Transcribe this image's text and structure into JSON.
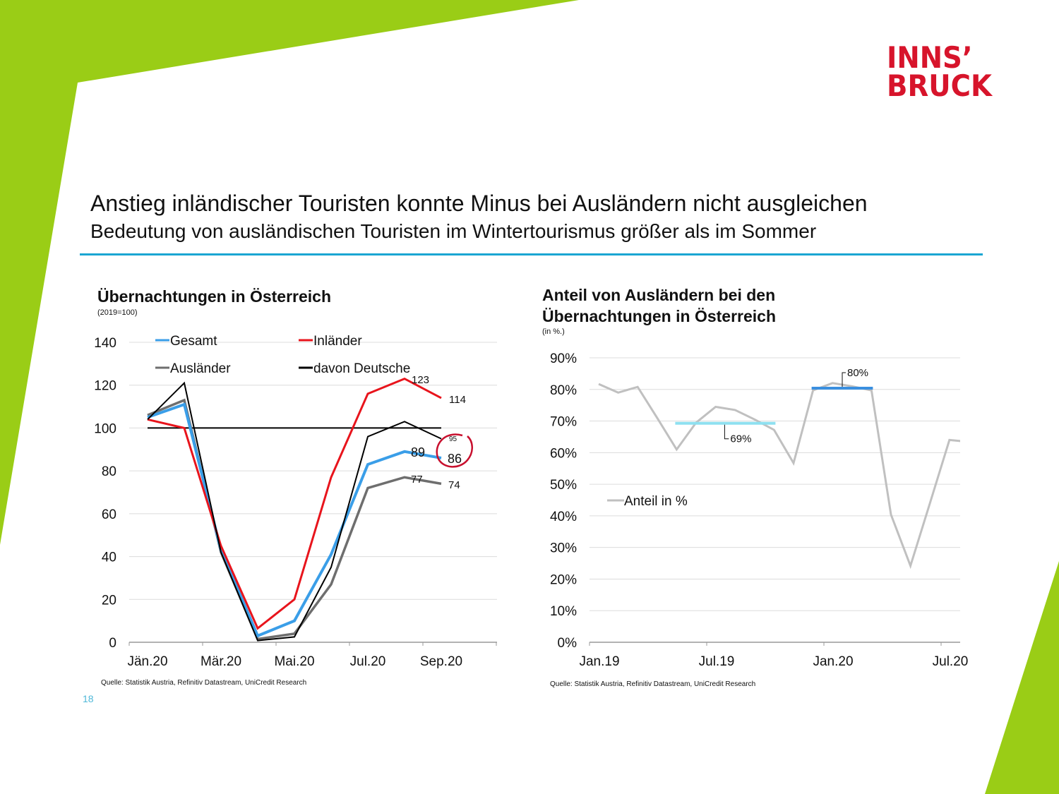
{
  "slide": {
    "logo_line1": "INNS’",
    "logo_line2": "BRUCK",
    "headline": "Anstieg inländischer Touristen konnte Minus bei Ausländern nicht ausgleichen",
    "subline": "Bedeutung von ausländischen Touristen im Wintertourismus größer als im Sommer",
    "page_number": "18",
    "colors": {
      "brand_green": "#9acd16",
      "brand_red": "#d7142b",
      "divider_blue": "#1aa6d2"
    }
  },
  "left_chart": {
    "title": "Übernachtungen in Österreich",
    "unit": "(2019=100)",
    "source": "Quelle: Statistik Austria, Refinitiv Datastream, UniCredit Research"
  },
  "right_chart": {
    "title_line1": "Anteil von Ausländern bei den",
    "title_line2": "Übernachtungen in Österreich",
    "unit": "(in %.)",
    "source": "Quelle: Statistik Austria, Refinitiv Datastream, UniCredit Research"
  },
  "chart_data": [
    {
      "type": "line",
      "title": "Übernachtungen in Österreich",
      "subtitle": "(2019=100)",
      "xlabel": "",
      "ylabel": "",
      "x": [
        "Jän.20",
        "Feb.20",
        "Mär.20",
        "Apr.20",
        "Mai.20",
        "Jun.20",
        "Jul.20",
        "Aug.20",
        "Sep.20"
      ],
      "x_tick_labels": [
        "Jän.20",
        "Mär.20",
        "Mai.20",
        "Jul.20",
        "Sep.20"
      ],
      "ylim": [
        0,
        140
      ],
      "y_ticks": [
        0,
        20,
        40,
        60,
        80,
        100,
        120,
        140
      ],
      "grid": true,
      "legend": "top",
      "reference_line": {
        "value": 100,
        "color": "#000000"
      },
      "series": [
        {
          "name": "Gesamt",
          "color": "#3a9ee8",
          "values": [
            105,
            111,
            43,
            3,
            10,
            41,
            83,
            89,
            86
          ]
        },
        {
          "name": "Inländer",
          "color": "#e8141c",
          "values": [
            104,
            100,
            45,
            6.5,
            20,
            77,
            116,
            123,
            114
          ]
        },
        {
          "name": "Ausländer",
          "color": "#6e6e6e",
          "values": [
            106,
            113,
            42,
            1.5,
            4,
            27,
            72,
            77,
            74
          ]
        },
        {
          "name": "davon Deutsche",
          "color": "#000000",
          "values": [
            104,
            121,
            42,
            0.8,
            2.5,
            35,
            96,
            103,
            95
          ]
        }
      ],
      "annotations": [
        {
          "text": "123",
          "series": "Inländer",
          "x": "Aug.20"
        },
        {
          "text": "114",
          "series": "Inländer",
          "x": "Sep.20"
        },
        {
          "text": "95",
          "series": "davon Deutsche",
          "x": "Sep.20"
        },
        {
          "text": "89",
          "series": "Gesamt",
          "x": "Aug.20"
        },
        {
          "text": "86",
          "series": "Gesamt",
          "x": "Sep.20",
          "circled": true
        },
        {
          "text": "77",
          "series": "Ausländer",
          "x": "Aug.20"
        },
        {
          "text": "74",
          "series": "Ausländer",
          "x": "Sep.20"
        }
      ]
    },
    {
      "type": "line",
      "title": "Anteil von Ausländern bei den Übernachtungen in Österreich",
      "subtitle": "(in %.)",
      "xlabel": "",
      "ylabel": "",
      "x": [
        "Jan.19",
        "Feb.19",
        "Mär.19",
        "Apr.19",
        "Mai.19",
        "Jun.19",
        "Jul.19",
        "Aug.19",
        "Sep.19",
        "Okt.19",
        "Nov.19",
        "Dez.19",
        "Jan.20",
        "Feb.20",
        "Mär.20",
        "Apr.20",
        "Mai.20",
        "Jun.20",
        "Jul.20",
        "Aug.20"
      ],
      "x_tick_labels": [
        "Jan.19",
        "Jul.19",
        "Jan.20",
        "Jul.20"
      ],
      "ylim": [
        0,
        90
      ],
      "y_ticks": [
        0,
        10,
        20,
        30,
        40,
        50,
        60,
        70,
        80,
        90
      ],
      "y_tick_format": "percent",
      "grid": true,
      "legend": "middle-left",
      "series": [
        {
          "name": "Anteil in %",
          "color": "#c0c0c0",
          "values": [
            81.7,
            79,
            80.8,
            71,
            61,
            69.5,
            74.5,
            73.5,
            70.5,
            67.2,
            56.7,
            79.7,
            82,
            81,
            79.7,
            40.4,
            24.2,
            44,
            64,
            63.4
          ]
        }
      ],
      "averages": [
        {
          "label": "69%",
          "value": 69.3,
          "from": "Mai.19",
          "to": "Okt.19",
          "color": "#8ee0f0"
        },
        {
          "label": "80%",
          "value": 80.4,
          "from": "Dez.19",
          "to": "Mär.20",
          "color": "#3a8fdf"
        }
      ]
    }
  ]
}
